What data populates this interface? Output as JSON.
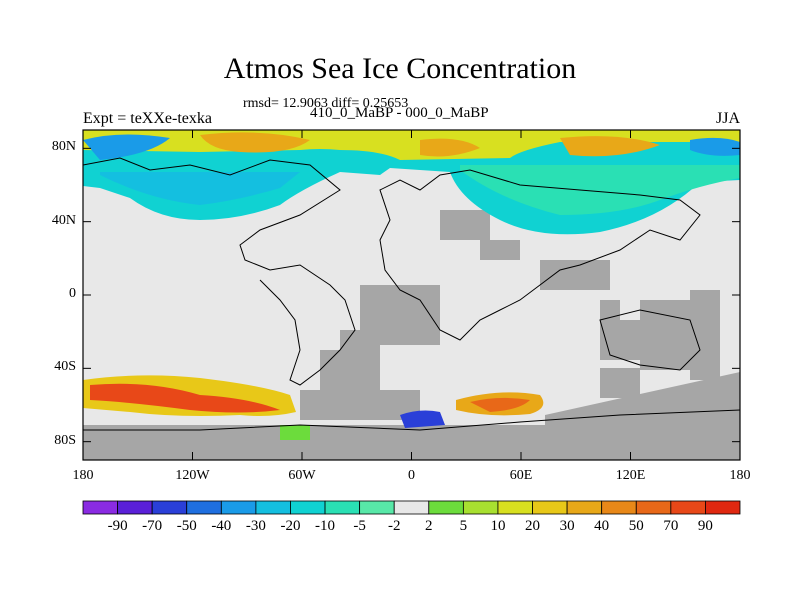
{
  "title": "Atmos Sea Ice Concentration",
  "stats": "rmsd= 12.9063 diff= 0.25653",
  "left_label": "Expt = teXXe-texka",
  "center_label": "410_0_MaBP - 000_0_MaBP",
  "right_label": "JJA",
  "lat_ticks": [
    {
      "value": 80,
      "label": "80N"
    },
    {
      "value": 40,
      "label": "40N"
    },
    {
      "value": 0,
      "label": "0"
    },
    {
      "value": -40,
      "label": "40S"
    },
    {
      "value": -80,
      "label": "80S"
    }
  ],
  "lon_ticks": [
    {
      "value": -180,
      "label": "180"
    },
    {
      "value": -120,
      "label": "120W"
    },
    {
      "value": -60,
      "label": "60W"
    },
    {
      "value": 0,
      "label": "0"
    },
    {
      "value": 60,
      "label": "60E"
    },
    {
      "value": 120,
      "label": "120E"
    },
    {
      "value": 180,
      "label": "180"
    }
  ],
  "colorbar": {
    "levels": [
      "-90",
      "-70",
      "-50",
      "-40",
      "-30",
      "-20",
      "-10",
      "-5",
      "-2",
      "2",
      "5",
      "10",
      "20",
      "30",
      "40",
      "50",
      "70",
      "90"
    ],
    "colors": [
      "#8a2be2",
      "#5a20d8",
      "#2a3fd8",
      "#1f6fe0",
      "#1a9be8",
      "#14bfe0",
      "#10d2d2",
      "#2ae0b4",
      "#58e8a8",
      "#e8e8e8",
      "#6cdc3c",
      "#a8e030",
      "#d8e020",
      "#e8c818",
      "#e8a818",
      "#e88818",
      "#e86818",
      "#e84818",
      "#e02810"
    ]
  },
  "colors": {
    "land_mask": "#a6a6a6",
    "no_change": "#e8e8e8",
    "coastline": "#000000"
  }
}
